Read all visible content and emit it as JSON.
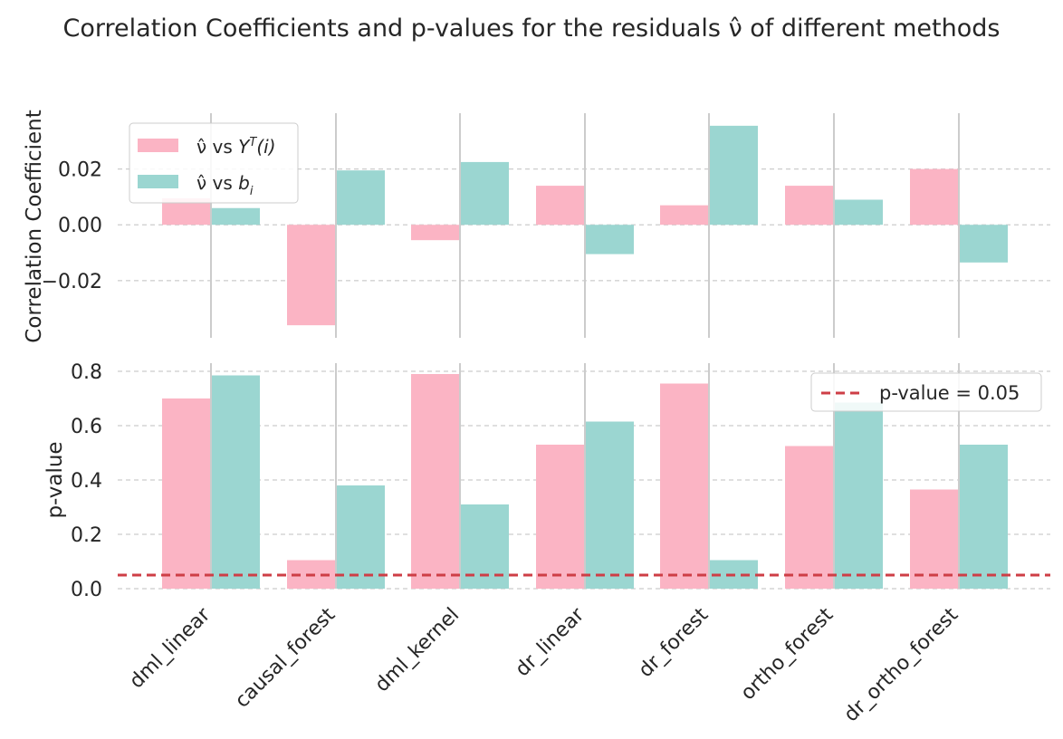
{
  "figure": {
    "title": "Correlation Coefficients and p-values for the residuals ν̂ of different methods"
  },
  "colors": {
    "series_a": "#FBB4C4",
    "series_b": "#9BD6D1",
    "threshold": "#CE3E46",
    "grid": "#CCCCCC",
    "text": "#262626"
  },
  "chart_data": [
    {
      "type": "bar",
      "panel": "correlation",
      "title": "",
      "xlabel": "",
      "ylabel": "Correlation Coefficient",
      "categories": [
        "dml_linear",
        "causal_forest",
        "dml_kernel",
        "dr_linear",
        "dr_forest",
        "ortho_forest",
        "dr_ortho_forest"
      ],
      "series": [
        {
          "name": "ν̂ vs Y^T(i)",
          "values": [
            0.0095,
            -0.036,
            -0.0055,
            0.014,
            0.007,
            0.014,
            0.02
          ]
        },
        {
          "name": "ν̂ vs b_i",
          "values": [
            0.006,
            0.0195,
            0.0225,
            -0.0105,
            0.0355,
            0.009,
            -0.0135
          ]
        }
      ],
      "ylim": [
        -0.0405,
        0.04
      ],
      "yticks": [
        -0.02,
        0.0,
        0.02
      ],
      "ytick_labels": [
        "−0.02",
        "0.00",
        "0.02"
      ],
      "grid": true,
      "legend": {
        "placement": "upper-left",
        "entries": [
          {
            "prefix": "ν̂ vs ",
            "main": "Y",
            "sup": "T",
            "suffix": "(i)"
          },
          {
            "prefix": "ν̂ vs ",
            "main": "b",
            "sub": "i",
            "suffix": ""
          }
        ]
      }
    },
    {
      "type": "bar",
      "panel": "pvalue",
      "title": "",
      "xlabel": "",
      "ylabel": "p-value",
      "categories": [
        "dml_linear",
        "causal_forest",
        "dml_kernel",
        "dr_linear",
        "dr_forest",
        "ortho_forest",
        "dr_ortho_forest"
      ],
      "series": [
        {
          "name": "ν̂ vs Y^T(i)",
          "values": [
            0.7,
            0.105,
            0.79,
            0.53,
            0.755,
            0.525,
            0.365
          ]
        },
        {
          "name": "ν̂ vs b_i",
          "values": [
            0.785,
            0.38,
            0.31,
            0.615,
            0.105,
            0.685,
            0.53
          ]
        }
      ],
      "threshold": {
        "value": 0.05,
        "label": "p-value = 0.05"
      },
      "ylim": [
        0.0,
        0.83
      ],
      "yticks": [
        0.0,
        0.2,
        0.4,
        0.6,
        0.8
      ],
      "ytick_labels": [
        "0.0",
        "0.2",
        "0.4",
        "0.6",
        "0.8"
      ],
      "grid": true,
      "legend": {
        "placement": "upper-right"
      }
    }
  ]
}
